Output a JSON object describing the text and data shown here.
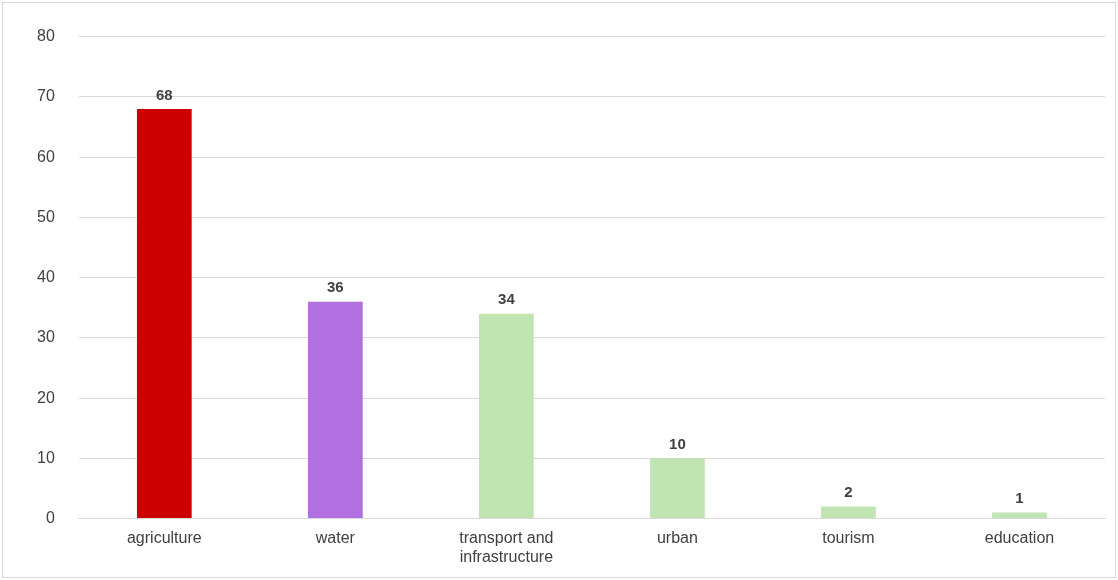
{
  "chart_data": {
    "type": "bar",
    "categories": [
      "agriculture",
      "water",
      "transport and infrastructure",
      "urban",
      "tourism",
      "education"
    ],
    "values": [
      68,
      36,
      34,
      10,
      2,
      1
    ],
    "colors": [
      "#cc0000",
      "#b070e0",
      "#c0e4b2",
      "#c0e4b2",
      "#c0e4b2",
      "#c0e4b2"
    ],
    "ylim": [
      0,
      80
    ],
    "yticks": [
      0,
      10,
      20,
      30,
      40,
      50,
      60,
      70,
      80
    ],
    "grid": "y",
    "data_labels": true
  }
}
